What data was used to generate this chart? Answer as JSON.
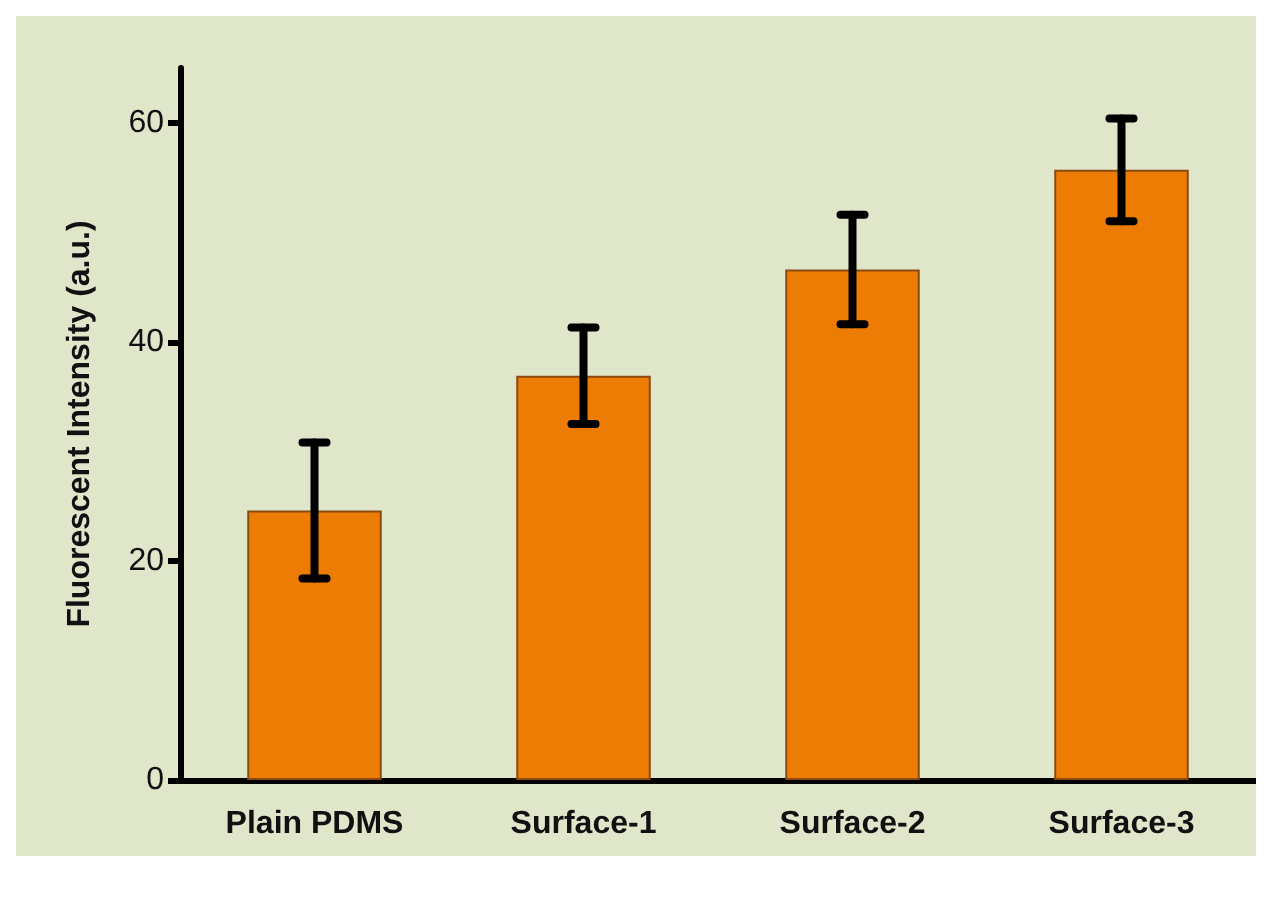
{
  "chart_data": {
    "type": "bar",
    "ylabel": "Fluorescent Intensity (a.u.)",
    "categories": [
      "Plain PDMS",
      "Surface-1",
      "Surface-2",
      "Surface-3"
    ],
    "values": [
      24.6,
      36.9,
      46.6,
      55.7
    ],
    "errors": [
      6.2,
      4.4,
      5,
      4.7
    ],
    "color": "#ec7c04",
    "ylim": [
      0,
      65
    ],
    "yticks": [
      0,
      20,
      40,
      60
    ]
  }
}
